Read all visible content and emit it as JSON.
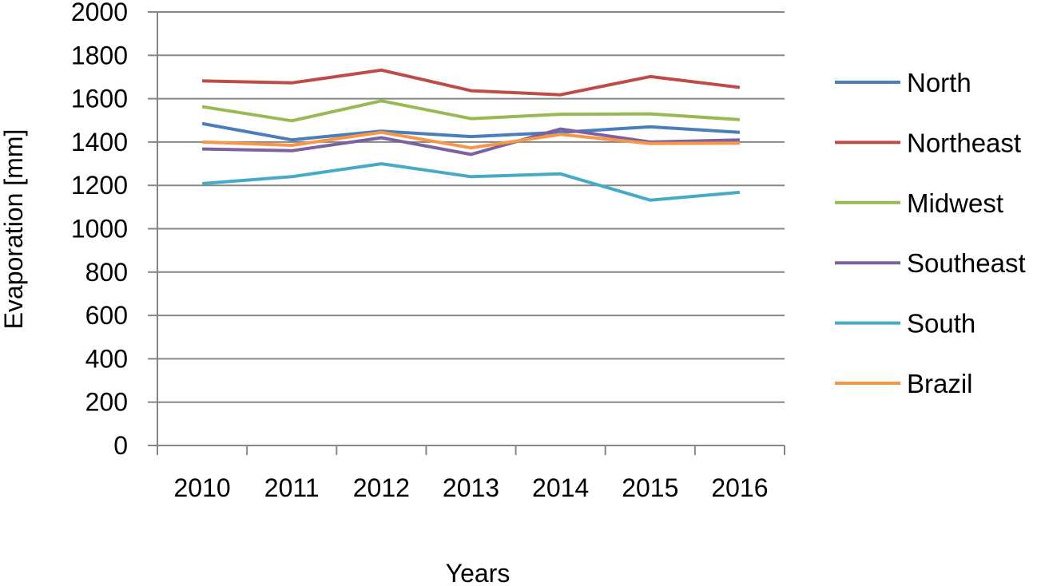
{
  "chart_data": {
    "type": "line",
    "title": "",
    "xlabel": "Years",
    "ylabel": "Evaporation [mm]",
    "ylim": [
      0,
      2000
    ],
    "y_ticks": [
      "0",
      "200",
      "400",
      "600",
      "800",
      "1000",
      "1200",
      "1400",
      "1600",
      "1800",
      "2000"
    ],
    "categories": [
      "2010",
      "2011",
      "2012",
      "2013",
      "2014",
      "2015",
      "2016"
    ],
    "grid": "horizontal",
    "legend_position": "right",
    "series": [
      {
        "name": "North",
        "color": "#4a7ebb",
        "values": [
          1485,
          1410,
          1450,
          1425,
          1445,
          1470,
          1445
        ]
      },
      {
        "name": "Northeast",
        "color": "#be4b48",
        "values": [
          1682,
          1673,
          1732,
          1637,
          1618,
          1702,
          1652
        ]
      },
      {
        "name": "Midwest",
        "color": "#98b954",
        "values": [
          1563,
          1498,
          1590,
          1508,
          1528,
          1530,
          1503
        ]
      },
      {
        "name": "Southeast",
        "color": "#7d60a0",
        "values": [
          1368,
          1360,
          1420,
          1343,
          1460,
          1400,
          1410
        ]
      },
      {
        "name": "South",
        "color": "#46aac5",
        "values": [
          1208,
          1240,
          1300,
          1240,
          1253,
          1132,
          1168
        ]
      },
      {
        "name": "Brazil",
        "color": "#f79646",
        "values": [
          1400,
          1385,
          1445,
          1373,
          1435,
          1393,
          1395
        ]
      }
    ]
  }
}
